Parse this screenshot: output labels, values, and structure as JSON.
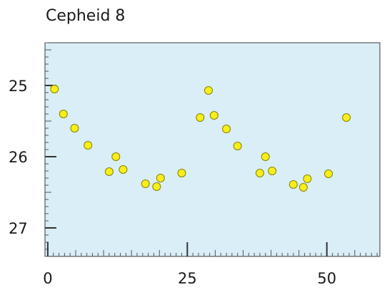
{
  "chart_data": {
    "type": "scatter",
    "title": "Cepheid 8",
    "xlabel": "",
    "ylabel": "",
    "xlim": [
      -0.5,
      59.5
    ],
    "ylim": [
      24.4,
      27.4
    ],
    "y_inverted": true,
    "x_ticks": [
      "0",
      "25",
      "50"
    ],
    "x_tick_values": [
      0,
      25,
      50
    ],
    "y_ticks": [
      "25",
      "26",
      "27"
    ],
    "y_tick_values": [
      25,
      26,
      27
    ],
    "grid": false,
    "background_color": "#d9eef7",
    "marker_color": "#f7ee1a",
    "marker_edge_color": "#8a8200",
    "series": [
      {
        "x": [
          1.2,
          2.8,
          4.8,
          7.2,
          11.0,
          12.2,
          13.5,
          17.5,
          19.5,
          20.2,
          24.0,
          27.3,
          28.8,
          29.8,
          32.0,
          34.0,
          38.0,
          39.0,
          40.2,
          44.0,
          45.8,
          46.5,
          50.3,
          53.5
        ],
        "y": [
          25.05,
          25.4,
          25.6,
          25.84,
          26.21,
          26.0,
          26.18,
          26.38,
          26.42,
          26.3,
          26.23,
          25.45,
          25.07,
          25.42,
          25.61,
          25.85,
          26.23,
          26.0,
          26.2,
          26.39,
          26.43,
          26.31,
          26.24,
          25.45
        ]
      }
    ]
  }
}
